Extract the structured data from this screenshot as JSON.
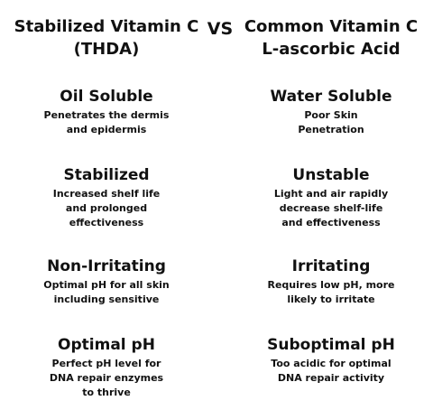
{
  "vs_label": "VS",
  "left": {
    "header": "Stabilized Vitamin C\n(THDA)",
    "rows": [
      {
        "title": "Oil Soluble",
        "desc": "Penetrates the dermis\nand epidermis"
      },
      {
        "title": "Stabilized",
        "desc": "Increased shelf life\nand prolonged\neffectiveness"
      },
      {
        "title": "Non-Irritating",
        "desc": "Optimal pH for all skin\nincluding sensitive"
      },
      {
        "title": "Optimal pH",
        "desc": "Perfect pH level for\nDNA repair enzymes\nto thrive"
      }
    ]
  },
  "right": {
    "header": "Common Vitamin C\nL-ascorbic Acid",
    "rows": [
      {
        "title": "Water Soluble",
        "desc": "Poor Skin\nPenetration"
      },
      {
        "title": "Unstable",
        "desc": "Light and air rapidly\ndecrease shelf-life\nand effectiveness"
      },
      {
        "title": "Irritating",
        "desc": "Requires low pH, more\nlikely to irritate"
      },
      {
        "title": "Suboptimal pH",
        "desc": "Too acidic for optimal\nDNA repair activity"
      }
    ]
  }
}
